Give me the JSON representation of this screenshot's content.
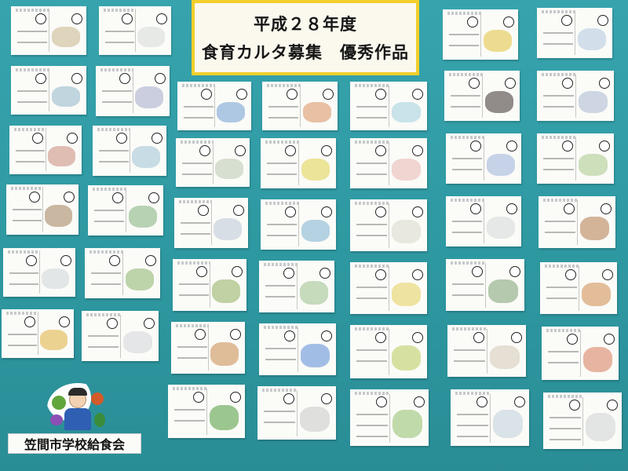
{
  "title": {
    "line1": "平成２８年度",
    "line2": "食育カルタ募集　優秀作品"
  },
  "footer": {
    "label": "笠間市学校給食会"
  },
  "colors": {
    "board": "#2f9aa3",
    "title_border": "#f2cf2c",
    "card": "#fbfbf8"
  }
}
